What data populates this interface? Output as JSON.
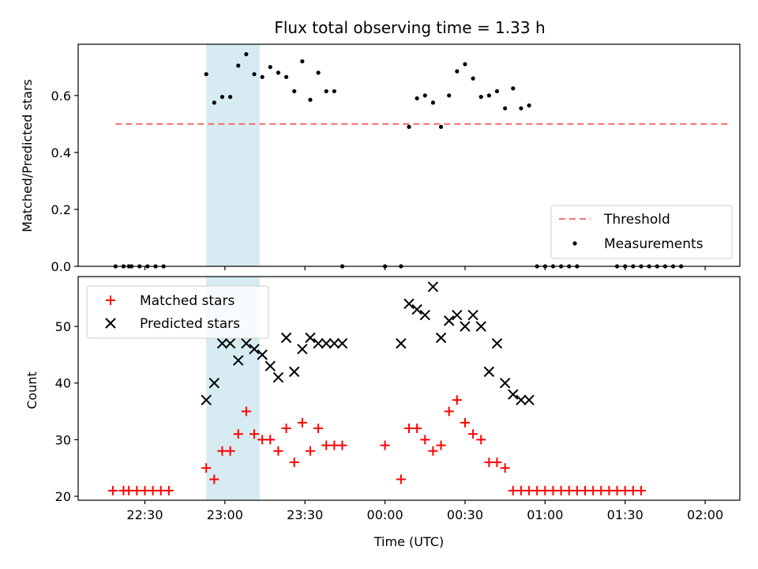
{
  "chart_data": [
    {
      "type": "scatter",
      "title": "Flux total observing time = 1.33 h",
      "xlabel": "",
      "ylabel": "Matched/Predicted stars",
      "ylim": [
        0.0,
        0.78
      ],
      "yticks": [
        0.0,
        0.2,
        0.4,
        0.6
      ],
      "ytick_labels": [
        "0.0",
        "0.2",
        "0.4",
        "0.6"
      ],
      "shaded_interval": [
        "22:53",
        "23:13"
      ],
      "legend_position": "lower-right",
      "series": [
        {
          "name": "Threshold",
          "style": "dashed-line",
          "color": "#f47b7b",
          "x": [
            "22:19",
            "02:09"
          ],
          "values": [
            0.5,
            0.5
          ]
        },
        {
          "name": "Measurements",
          "style": "dot",
          "color": "#000000",
          "x": [
            "22:19",
            "22:22",
            "22:24",
            "22:25",
            "22:28",
            "22:31",
            "22:34",
            "22:37",
            "22:53",
            "22:56",
            "22:59",
            "23:02",
            "23:05",
            "23:08",
            "23:11",
            "23:14",
            "23:17",
            "23:20",
            "23:23",
            "23:26",
            "23:29",
            "23:32",
            "23:35",
            "23:38",
            "23:41",
            "23:44",
            "00:00",
            "00:06",
            "00:09",
            "00:12",
            "00:15",
            "00:18",
            "00:21",
            "00:24",
            "00:27",
            "00:30",
            "00:33",
            "00:36",
            "00:39",
            "00:42",
            "00:45",
            "00:48",
            "00:51",
            "00:54",
            "00:57",
            "01:00",
            "01:03",
            "01:06",
            "01:09",
            "01:12",
            "01:27",
            "01:30",
            "01:33",
            "01:36",
            "01:39",
            "01:42",
            "01:45",
            "01:48",
            "01:51"
          ],
          "values": [
            0.0,
            0.0,
            0.0,
            0.0,
            0.0,
            0.0,
            0.0,
            0.0,
            0.675,
            0.575,
            0.595,
            0.595,
            0.705,
            0.745,
            0.675,
            0.665,
            0.7,
            0.68,
            0.665,
            0.615,
            0.72,
            0.585,
            0.68,
            0.615,
            0.615,
            0.0,
            0.0,
            0.0,
            0.49,
            0.59,
            0.6,
            0.575,
            0.49,
            0.6,
            0.685,
            0.71,
            0.66,
            0.595,
            0.6,
            0.615,
            0.555,
            0.625,
            0.555,
            0.565,
            0.0,
            0.0,
            0.0,
            0.0,
            0.0,
            0.0,
            0.0,
            0.0,
            0.0,
            0.0,
            0.0,
            0.0,
            0.0,
            0.0,
            0.0
          ]
        }
      ]
    },
    {
      "type": "scatter",
      "title": "",
      "xlabel": "Time (UTC)",
      "ylabel": "Count",
      "ylim": [
        19.3,
        58.8
      ],
      "yticks": [
        20,
        30,
        40,
        50
      ],
      "ytick_labels": [
        "20",
        "30",
        "40",
        "50"
      ],
      "xticks": [
        "22:30",
        "23:00",
        "23:30",
        "00:00",
        "00:30",
        "01:00",
        "01:30",
        "02:00"
      ],
      "shaded_interval": [
        "22:53",
        "23:13"
      ],
      "legend_position": "upper-left",
      "series": [
        {
          "name": "Matched stars",
          "style": "plus",
          "color": "#ff0000",
          "x": [
            "22:18",
            "22:22",
            "22:24",
            "22:27",
            "22:30",
            "22:33",
            "22:36",
            "22:39",
            "22:53",
            "22:56",
            "22:59",
            "23:02",
            "23:05",
            "23:08",
            "23:11",
            "23:14",
            "23:17",
            "23:20",
            "23:23",
            "23:26",
            "23:29",
            "23:32",
            "23:35",
            "23:38",
            "23:41",
            "23:44",
            "00:00",
            "00:06",
            "00:09",
            "00:12",
            "00:15",
            "00:18",
            "00:21",
            "00:24",
            "00:27",
            "00:30",
            "00:33",
            "00:36",
            "00:39",
            "00:42",
            "00:45",
            "00:48",
            "00:51",
            "00:54",
            "00:57",
            "01:00",
            "01:03",
            "01:06",
            "01:09",
            "01:12",
            "01:15",
            "01:18",
            "01:21",
            "01:24",
            "01:27",
            "01:30",
            "01:33",
            "01:36"
          ],
          "values": [
            21,
            21,
            21,
            21,
            21,
            21,
            21,
            21,
            25,
            23,
            28,
            28,
            31,
            35,
            31,
            30,
            30,
            28,
            32,
            26,
            33,
            28,
            32,
            29,
            29,
            29,
            29,
            23,
            32,
            32,
            30,
            28,
            29,
            35,
            37,
            33,
            31,
            30,
            26,
            26,
            25,
            21,
            21,
            21,
            21,
            21,
            21,
            21,
            21,
            21,
            21,
            21,
            21,
            21,
            21,
            21,
            21,
            21
          ]
        },
        {
          "name": "Predicted stars",
          "style": "x",
          "color": "#000000",
          "x": [
            "22:53",
            "22:56",
            "22:59",
            "23:02",
            "23:05",
            "23:08",
            "23:11",
            "23:14",
            "23:17",
            "23:20",
            "23:23",
            "23:26",
            "23:29",
            "23:32",
            "23:35",
            "23:38",
            "23:41",
            "23:44",
            "00:06",
            "00:09",
            "00:12",
            "00:15",
            "00:18",
            "00:21",
            "00:24",
            "00:27",
            "00:30",
            "00:33",
            "00:36",
            "00:39",
            "00:42",
            "00:45",
            "00:48",
            "00:51",
            "00:54"
          ],
          "values": [
            37,
            40,
            47,
            47,
            44,
            47,
            46,
            45,
            43,
            41,
            48,
            42,
            46,
            48,
            47,
            47,
            47,
            47,
            47,
            54,
            53,
            52,
            57,
            48,
            51,
            52,
            50,
            52,
            50,
            42,
            47,
            40,
            38,
            37,
            37
          ]
        }
      ]
    }
  ]
}
